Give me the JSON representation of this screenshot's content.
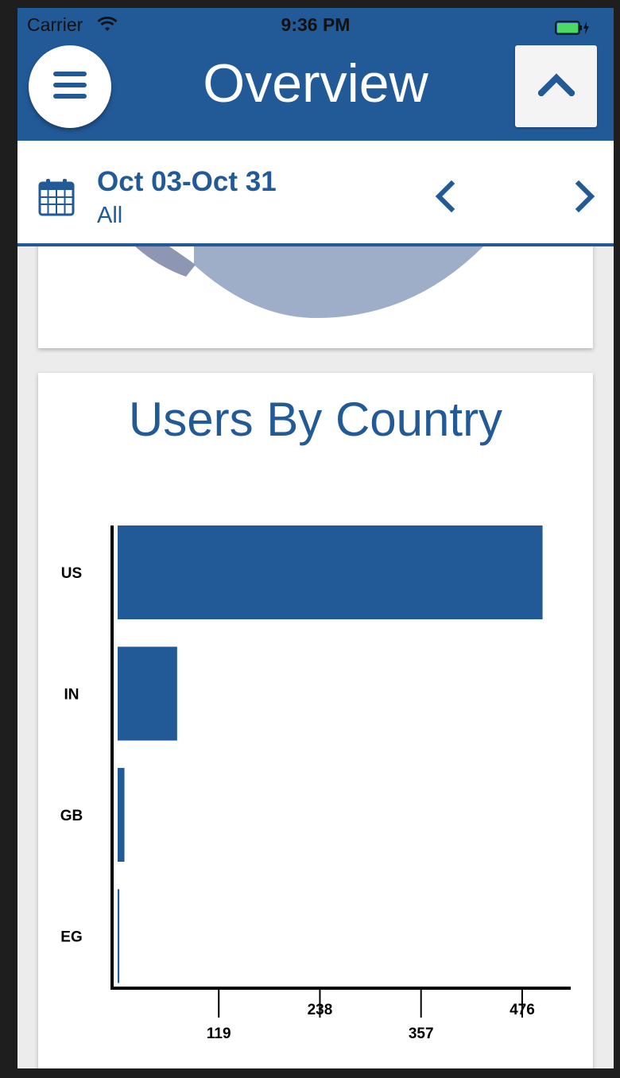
{
  "status_bar": {
    "carrier": "Carrier",
    "time": "9:36 PM",
    "wifi_icon": "wifi-icon",
    "battery_icon": "battery-charging-icon",
    "battery_color": "#4cd964"
  },
  "header": {
    "title": "Overview",
    "menu_icon": "hamburger-menu-icon",
    "up_icon": "chevron-up-icon",
    "brand_color": "#225a98"
  },
  "date_bar": {
    "range": "Oct 03-Oct 31",
    "filter": "All",
    "calendar_icon": "calendar-icon",
    "prev_icon": "chevron-left-icon",
    "next_icon": "chevron-right-icon"
  },
  "pie_card": {
    "slice_colors": [
      "#8d97b4",
      "#9eaec8"
    ]
  },
  "chart_data": {
    "type": "bar",
    "orientation": "horizontal",
    "title": "Users By Country",
    "categories": [
      "US",
      "IN",
      "GB",
      "EG"
    ],
    "values": [
      500,
      70,
      8,
      2
    ],
    "xlim": [
      0,
      535
    ],
    "xticks": [
      119,
      238,
      357,
      476
    ],
    "xtick_labels": [
      "119",
      "238",
      "357",
      "476"
    ],
    "bar_color": "#225a98",
    "grid": false
  }
}
